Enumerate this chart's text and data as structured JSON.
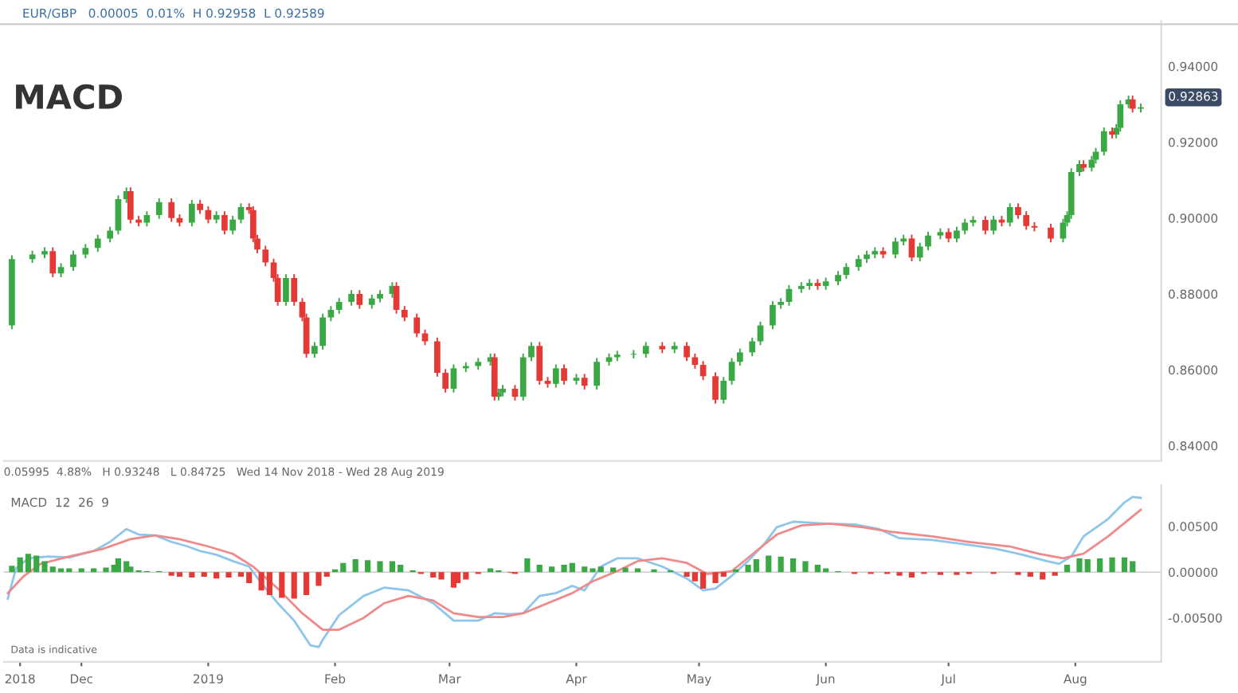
{
  "chart_data": [
    {
      "type": "candlestick",
      "title": "MACD",
      "subtitle": "EUR/GBP   0.00005  0.01%  H 0.92958  L 0.92589",
      "annotations": [
        "0.05995  4.88%   H 0.93248   L 0.84725   Wed 14 Nov 2018 - Wed 28 Aug 2019",
        "0.92863"
      ],
      "xlim": [
        "2018-11-12",
        "2019-08-22"
      ],
      "ylim": [
        0.836,
        0.952
      ],
      "tick_labels": "y",
      "yticks": [
        {
          "value": 0.84,
          "label": "0.84000"
        },
        {
          "value": 0.86,
          "label": "0.86000"
        },
        {
          "value": 0.88,
          "label": "0.88000"
        },
        {
          "value": 0.9,
          "label": "0.90000"
        },
        {
          "value": 0.92,
          "label": "0.92000"
        },
        {
          "value": 0.94,
          "label": "0.94000"
        }
      ],
      "series": [
        {
          "type": "candlestick",
          "color": "#3aa845",
          "x": [
            "2018-11-14",
            "2018-11-19",
            "2018-11-22",
            "2018-11-26",
            "2018-11-29",
            "2018-12-02",
            "2018-12-05",
            "2018-12-08",
            "2018-12-10",
            "2018-12-12",
            "2018-12-17",
            "2018-12-20",
            "2018-12-28",
            "2019-01-03",
            "2019-01-07",
            "2019-01-09",
            "2019-01-20",
            "2019-01-27",
            "2019-01-29",
            "2019-01-31",
            "2019-02-02",
            "2019-02-05",
            "2019-02-10",
            "2019-02-12",
            "2019-02-15",
            "2019-03-02",
            "2019-03-05",
            "2019-03-08",
            "2019-03-11",
            "2019-03-13",
            "2019-03-14",
            "2019-03-19",
            "2019-03-21",
            "2019-03-27",
            "2019-04-01",
            "2019-04-06",
            "2019-04-09",
            "2019-04-11",
            "2019-04-15",
            "2019-04-18",
            "2019-04-25",
            "2019-05-07",
            "2019-05-09",
            "2019-05-11",
            "2019-05-14",
            "2019-05-16",
            "2019-05-19",
            "2019-05-21",
            "2019-05-23",
            "2019-05-26",
            "2019-05-28",
            "2019-06-01",
            "2019-06-04",
            "2019-06-06",
            "2019-06-09",
            "2019-06-11",
            "2019-06-13",
            "2019-06-18",
            "2019-06-20",
            "2019-06-24",
            "2019-06-26",
            "2019-06-29",
            "2019-07-03",
            "2019-07-05",
            "2019-07-07",
            "2019-07-12",
            "2019-07-16",
            "2019-07-29",
            "2019-07-30",
            "2019-07-31",
            "2019-08-02",
            "2019-08-05",
            "2019-08-06",
            "2019-08-08",
            "2019-08-11",
            "2019-08-12",
            "2019-08-14",
            "2019-08-17"
          ],
          "ohlc": [
            [
              0.8717,
              0.8902,
              0.8707,
              0.8892
            ],
            [
              0.8892,
              0.8914,
              0.8882,
              0.8904
            ],
            [
              0.8904,
              0.8923,
              0.8894,
              0.8913
            ],
            [
              0.8854,
              0.8881,
              0.8844,
              0.8871
            ],
            [
              0.8871,
              0.8914,
              0.8861,
              0.8904
            ],
            [
              0.8904,
              0.8931,
              0.8894,
              0.8921
            ],
            [
              0.8921,
              0.8956,
              0.8911,
              0.8946
            ],
            [
              0.8946,
              0.8977,
              0.8936,
              0.8967
            ],
            [
              0.8967,
              0.906,
              0.8957,
              0.905
            ],
            [
              0.905,
              0.9081,
              0.904,
              0.9071
            ],
            [
              0.8988,
              0.9018,
              0.8978,
              0.9008
            ],
            [
              0.9008,
              0.9052,
              0.8998,
              0.9042
            ],
            [
              0.8988,
              0.9048,
              0.8978,
              0.9038
            ],
            [
              0.8996,
              0.9018,
              0.8986,
              0.9008
            ],
            [
              0.8967,
              0.9006,
              0.8957,
              0.8996
            ],
            [
              0.8996,
              0.9039,
              0.8986,
              0.9029
            ],
            [
              0.8779,
              0.8852,
              0.8769,
              0.8842
            ],
            [
              0.8642,
              0.8673,
              0.8632,
              0.8663
            ],
            [
              0.8663,
              0.8748,
              0.8653,
              0.8738
            ],
            [
              0.8738,
              0.8768,
              0.8728,
              0.8758
            ],
            [
              0.8758,
              0.8789,
              0.8748,
              0.8779
            ],
            [
              0.8779,
              0.881,
              0.8769,
              0.88
            ],
            [
              0.8771,
              0.8798,
              0.8761,
              0.8788
            ],
            [
              0.8788,
              0.881,
              0.8778,
              0.88
            ],
            [
              0.88,
              0.8831,
              0.879,
              0.8821
            ],
            [
              0.855,
              0.8614,
              0.854,
              0.8604
            ],
            [
              0.8604,
              0.862,
              0.8594,
              0.861
            ],
            [
              0.861,
              0.8631,
              0.86,
              0.8621
            ],
            [
              0.8621,
              0.8643,
              0.8611,
              0.8633
            ],
            [
              0.8529,
              0.855,
              0.8519,
              0.854
            ],
            [
              0.854,
              0.856,
              0.853,
              0.855
            ],
            [
              0.8529,
              0.8643,
              0.8519,
              0.8633
            ],
            [
              0.8633,
              0.8673,
              0.8623,
              0.8663
            ],
            [
              0.8563,
              0.8614,
              0.8553,
              0.8604
            ],
            [
              0.8571,
              0.8589,
              0.8561,
              0.8579
            ],
            [
              0.8558,
              0.8631,
              0.8548,
              0.8621
            ],
            [
              0.8621,
              0.8643,
              0.8611,
              0.8633
            ],
            [
              0.8633,
              0.865,
              0.8623,
              0.864
            ],
            [
              0.864,
              0.8652,
              0.863,
              0.8642
            ],
            [
              0.8642,
              0.8673,
              0.8632,
              0.8663
            ],
            [
              0.8654,
              0.8673,
              0.8644,
              0.8663
            ],
            [
              0.8521,
              0.8581,
              0.8511,
              0.8571
            ],
            [
              0.8571,
              0.8631,
              0.8561,
              0.8621
            ],
            [
              0.8621,
              0.8656,
              0.8611,
              0.8646
            ],
            [
              0.8646,
              0.8685,
              0.8636,
              0.8675
            ],
            [
              0.8675,
              0.8727,
              0.8665,
              0.8717
            ],
            [
              0.8717,
              0.8781,
              0.8707,
              0.8771
            ],
            [
              0.8771,
              0.8789,
              0.8761,
              0.8779
            ],
            [
              0.8779,
              0.8823,
              0.8769,
              0.8813
            ],
            [
              0.8813,
              0.8831,
              0.8803,
              0.8821
            ],
            [
              0.8821,
              0.8839,
              0.8811,
              0.8829
            ],
            [
              0.8821,
              0.8843,
              0.8811,
              0.8833
            ],
            [
              0.8833,
              0.886,
              0.8823,
              0.885
            ],
            [
              0.885,
              0.8881,
              0.884,
              0.8871
            ],
            [
              0.8871,
              0.8902,
              0.8861,
              0.8892
            ],
            [
              0.8892,
              0.8914,
              0.8882,
              0.8904
            ],
            [
              0.8904,
              0.8923,
              0.8894,
              0.8913
            ],
            [
              0.8904,
              0.8948,
              0.8894,
              0.8938
            ],
            [
              0.8938,
              0.8956,
              0.8928,
              0.8946
            ],
            [
              0.8896,
              0.8935,
              0.8886,
              0.8925
            ],
            [
              0.8925,
              0.8964,
              0.8915,
              0.8954
            ],
            [
              0.8954,
              0.8973,
              0.8944,
              0.8963
            ],
            [
              0.8946,
              0.8977,
              0.8936,
              0.8967
            ],
            [
              0.8967,
              0.8998,
              0.8957,
              0.8988
            ],
            [
              0.8988,
              0.9005,
              0.8978,
              0.8995
            ],
            [
              0.8967,
              0.9006,
              0.8957,
              0.8996
            ],
            [
              0.8988,
              0.9039,
              0.8978,
              0.9029
            ],
            [
              0.8946,
              0.8998,
              0.8936,
              0.8988
            ],
            [
              0.8988,
              0.9018,
              0.8978,
              0.9008
            ],
            [
              0.9008,
              0.9131,
              0.8998,
              0.9121
            ],
            [
              0.9121,
              0.9152,
              0.9111,
              0.9142
            ],
            [
              0.9133,
              0.9164,
              0.9123,
              0.9154
            ],
            [
              0.9154,
              0.9185,
              0.9144,
              0.9175
            ],
            [
              0.9175,
              0.9239,
              0.9165,
              0.9229
            ],
            [
              0.922,
              0.9248,
              0.921,
              0.9238
            ],
            [
              0.9238,
              0.931,
              0.9228,
              0.93
            ],
            [
              0.93,
              0.9323,
              0.929,
              0.9313
            ],
            [
              0.9288,
              0.9302,
              0.9278,
              0.9292
            ]
          ]
        },
        {
          "type": "candlestick",
          "color": "#e53935",
          "x": [
            "2018-11-24",
            "2018-12-13",
            "2018-12-15",
            "2018-12-23",
            "2018-12-25",
            "2018-12-30",
            "2019-01-01",
            "2019-01-05",
            "2019-01-11",
            "2019-01-12",
            "2019-01-13",
            "2019-01-15",
            "2019-01-17",
            "2019-01-18",
            "2019-01-22",
            "2019-01-24",
            "2019-01-25",
            "2019-02-07",
            "2019-02-16",
            "2019-02-18",
            "2019-02-21",
            "2019-02-23",
            "2019-02-26",
            "2019-02-28",
            "2019-03-12",
            "2019-03-17",
            "2019-03-23",
            "2019-03-25",
            "2019-03-29",
            "2019-04-03",
            "2019-04-22",
            "2019-04-28",
            "2019-04-30",
            "2019-05-02",
            "2019-05-05",
            "2019-05-30",
            "2019-06-15",
            "2019-06-22",
            "2019-07-01",
            "2019-07-10",
            "2019-07-14",
            "2019-07-18",
            "2019-07-20",
            "2019-07-22",
            "2019-07-26",
            "2019-08-03",
            "2019-08-10",
            "2019-08-15"
          ],
          "ohlc": [
            [
              0.8913,
              0.8923,
              0.8844,
              0.8854
            ],
            [
              0.9071,
              0.9081,
              0.8986,
              0.8996
            ],
            [
              0.8996,
              0.9006,
              0.8978,
              0.8988
            ],
            [
              0.9042,
              0.9052,
              0.899,
              0.9
            ],
            [
              0.9,
              0.901,
              0.8978,
              0.8988
            ],
            [
              0.9038,
              0.9048,
              0.9011,
              0.9021
            ],
            [
              0.9021,
              0.9031,
              0.8986,
              0.8996
            ],
            [
              0.9008,
              0.9018,
              0.8957,
              0.8967
            ],
            [
              0.9029,
              0.9039,
              0.9011,
              0.9021
            ],
            [
              0.9021,
              0.9031,
              0.8936,
              0.8946
            ],
            [
              0.8946,
              0.8956,
              0.8907,
              0.8917
            ],
            [
              0.8917,
              0.8927,
              0.8873,
              0.8883
            ],
            [
              0.8883,
              0.8893,
              0.8832,
              0.8842
            ],
            [
              0.8842,
              0.8852,
              0.8769,
              0.8779
            ],
            [
              0.8842,
              0.8852,
              0.8769,
              0.8779
            ],
            [
              0.8779,
              0.8789,
              0.8728,
              0.8738
            ],
            [
              0.8738,
              0.8748,
              0.8632,
              0.8642
            ],
            [
              0.88,
              0.881,
              0.8761,
              0.8771
            ],
            [
              0.8821,
              0.8831,
              0.8748,
              0.8758
            ],
            [
              0.8758,
              0.8768,
              0.8728,
              0.8738
            ],
            [
              0.8738,
              0.8748,
              0.8686,
              0.8696
            ],
            [
              0.8696,
              0.8706,
              0.8665,
              0.8675
            ],
            [
              0.8675,
              0.8685,
              0.8582,
              0.8592
            ],
            [
              0.8592,
              0.8602,
              0.854,
              0.855
            ],
            [
              0.8633,
              0.8643,
              0.8519,
              0.8529
            ],
            [
              0.855,
              0.856,
              0.8519,
              0.8529
            ],
            [
              0.8663,
              0.8673,
              0.8561,
              0.8571
            ],
            [
              0.8571,
              0.8581,
              0.8553,
              0.8563
            ],
            [
              0.8604,
              0.8614,
              0.8561,
              0.8571
            ],
            [
              0.8579,
              0.8589,
              0.8548,
              0.8558
            ],
            [
              0.8663,
              0.8673,
              0.8644,
              0.8654
            ],
            [
              0.8663,
              0.8673,
              0.8623,
              0.8633
            ],
            [
              0.8633,
              0.8643,
              0.8603,
              0.8613
            ],
            [
              0.8613,
              0.8623,
              0.8573,
              0.8583
            ],
            [
              0.8583,
              0.8593,
              0.8511,
              0.8521
            ],
            [
              0.8829,
              0.8839,
              0.8811,
              0.8821
            ],
            [
              0.8913,
              0.8923,
              0.8894,
              0.8904
            ],
            [
              0.8946,
              0.8956,
              0.8886,
              0.8896
            ],
            [
              0.8963,
              0.8973,
              0.8936,
              0.8946
            ],
            [
              0.8995,
              0.9005,
              0.8957,
              0.8967
            ],
            [
              0.8996,
              0.9006,
              0.8978,
              0.8988
            ],
            [
              0.9029,
              0.9039,
              0.8998,
              0.9008
            ],
            [
              0.9008,
              0.9018,
              0.8969,
              0.8979
            ],
            [
              0.8979,
              0.8989,
              0.8965,
              0.8975
            ],
            [
              0.8975,
              0.8985,
              0.8936,
              0.8946
            ],
            [
              0.9142,
              0.9152,
              0.9123,
              0.9133
            ],
            [
              0.9229,
              0.9239,
              0.921,
              0.922
            ],
            [
              0.9313,
              0.9323,
              0.9278,
              0.9288
            ]
          ]
        }
      ]
    },
    {
      "type": "bar",
      "title": "MACD  12  26  9",
      "annotations": [
        "Data is indicative"
      ],
      "xlim": [
        "2018-11-12",
        "2019-08-22"
      ],
      "ylim": [
        -0.0098,
        0.0095
      ],
      "xticks": [
        {
          "value": "2018-11-16",
          "label": "2018"
        },
        {
          "value": "2018-12-01",
          "label": "Dec"
        },
        {
          "value": "2019-01-01",
          "label": "2019"
        },
        {
          "value": "2019-02-01",
          "label": "Feb"
        },
        {
          "value": "2019-03-01",
          "label": "Mar"
        },
        {
          "value": "2019-04-01",
          "label": "Apr"
        },
        {
          "value": "2019-05-01",
          "label": "May"
        },
        {
          "value": "2019-06-01",
          "label": "Jun"
        },
        {
          "value": "2019-07-01",
          "label": "Jul"
        },
        {
          "value": "2019-08-01",
          "label": "Aug"
        }
      ],
      "yticks": [
        {
          "value": -0.005,
          "label": "-0.00500"
        },
        {
          "value": 0,
          "label": "0.00000"
        },
        {
          "value": 0.005,
          "label": "0.00500"
        }
      ],
      "series": [
        {
          "type": "bar",
          "color": "#3aa845",
          "x": [
            "2018-11-14",
            "2018-11-16",
            "2018-11-18",
            "2018-11-20",
            "2018-11-22",
            "2018-11-24",
            "2018-11-26",
            "2018-11-28",
            "2018-12-01",
            "2018-12-04",
            "2018-12-07",
            "2018-12-09",
            "2018-12-10",
            "2018-12-12",
            "2018-12-13",
            "2018-12-15",
            "2018-12-17",
            "2018-12-20",
            "2019-02-01",
            "2019-02-03",
            "2019-02-06",
            "2019-02-09",
            "2019-02-12",
            "2019-02-15",
            "2019-02-17",
            "2019-02-20",
            "2019-03-11",
            "2019-03-13",
            "2019-03-20",
            "2019-03-23",
            "2019-03-26",
            "2019-03-29",
            "2019-03-31",
            "2019-04-03",
            "2019-04-05",
            "2019-04-07",
            "2019-04-10",
            "2019-04-13",
            "2019-04-16",
            "2019-04-20",
            "2019-04-24",
            "2019-05-10",
            "2019-05-13",
            "2019-05-15",
            "2019-05-18",
            "2019-05-21",
            "2019-05-24",
            "2019-05-27",
            "2019-05-30",
            "2019-06-01",
            "2019-06-04",
            "2019-07-30",
            "2019-08-02",
            "2019-08-04",
            "2019-08-07",
            "2019-08-10",
            "2019-08-13",
            "2019-08-15"
          ],
          "values": [
            0.0007,
            0.0016,
            0.002,
            0.0018,
            0.0012,
            0.0006,
            0.0004,
            0.0004,
            0.0004,
            0.0004,
            0.0005,
            0.0008,
            0.0015,
            0.0012,
            0.0006,
            0.0002,
            0.0001,
            0.0001,
            0.0003,
            0.001,
            0.0014,
            0.0013,
            0.0012,
            0.0012,
            0.0008,
            0.0002,
            0.0004,
            0.0002,
            0.0015,
            0.0008,
            0.0006,
            0.0008,
            0.001,
            0.0006,
            0.0004,
            0.0006,
            0.0005,
            0.0005,
            0.0004,
            0.0003,
            0.0002,
            0.0003,
            0.0008,
            0.0014,
            0.0018,
            0.0017,
            0.0015,
            0.0012,
            0.0008,
            0.0004,
            0.0001,
            0.0008,
            0.0015,
            0.0014,
            0.0015,
            0.0016,
            0.0016,
            0.0012
          ]
        },
        {
          "type": "bar",
          "color": "#e53935",
          "x": [
            "2018-12-23",
            "2018-12-25",
            "2018-12-28",
            "2018-12-31",
            "2019-01-03",
            "2019-01-06",
            "2019-01-09",
            "2019-01-11",
            "2019-01-14",
            "2019-01-16",
            "2019-01-19",
            "2019-01-22",
            "2019-01-25",
            "2019-01-28",
            "2019-01-30",
            "2019-02-22",
            "2019-02-25",
            "2019-02-27",
            "2019-03-02",
            "2019-03-03",
            "2019-03-05",
            "2019-03-08",
            "2019-03-16",
            "2019-03-17",
            "2019-04-28",
            "2019-04-30",
            "2019-05-02",
            "2019-05-05",
            "2019-05-07",
            "2019-06-08",
            "2019-06-12",
            "2019-06-16",
            "2019-06-19",
            "2019-06-22",
            "2019-06-25",
            "2019-06-29",
            "2019-07-03",
            "2019-07-06",
            "2019-07-12",
            "2019-07-18",
            "2019-07-21",
            "2019-07-24",
            "2019-07-27"
          ],
          "values": [
            -0.0004,
            -0.0005,
            -0.0006,
            -0.0005,
            -0.0007,
            -0.0006,
            -0.0005,
            -0.0012,
            -0.002,
            -0.0025,
            -0.0028,
            -0.0029,
            -0.0025,
            -0.0015,
            -0.0005,
            -0.0002,
            -0.0006,
            -0.0008,
            -0.0017,
            -0.0012,
            -0.0008,
            -0.0002,
            -0.0001,
            -0.0002,
            -0.0005,
            -0.001,
            -0.0018,
            -0.0012,
            -0.0005,
            -0.0002,
            -0.0002,
            -0.0002,
            -0.0004,
            -0.0006,
            -0.0002,
            -0.0003,
            -0.0003,
            -0.0002,
            -0.0002,
            -0.0003,
            -0.0005,
            -0.0008,
            -0.0004
          ]
        },
        {
          "type": "line",
          "color": "#8ec5ea",
          "x": [
            "2018-11-13",
            "2018-11-15",
            "2018-11-18",
            "2018-11-23",
            "2018-11-28",
            "2018-12-04",
            "2018-12-08",
            "2018-12-12",
            "2018-12-15",
            "2018-12-19",
            "2018-12-23",
            "2018-12-27",
            "2018-12-30",
            "2019-01-03",
            "2019-01-07",
            "2019-01-11",
            "2019-01-14",
            "2019-01-18",
            "2019-01-22",
            "2019-01-26",
            "2019-01-28",
            "2019-01-29",
            "2019-02-02",
            "2019-02-08",
            "2019-02-13",
            "2019-02-19",
            "2019-02-25",
            "2019-03-02",
            "2019-03-08",
            "2019-03-12",
            "2019-03-16",
            "2019-03-19",
            "2019-03-23",
            "2019-03-27",
            "2019-03-31",
            "2019-04-03",
            "2019-04-07",
            "2019-04-11",
            "2019-04-16",
            "2019-04-22",
            "2019-04-28",
            "2019-05-02",
            "2019-05-05",
            "2019-05-09",
            "2019-05-13",
            "2019-05-17",
            "2019-05-20",
            "2019-05-24",
            "2019-06-01",
            "2019-06-08",
            "2019-06-14",
            "2019-06-19",
            "2019-06-27",
            "2019-07-04",
            "2019-07-12",
            "2019-07-19",
            "2019-07-25",
            "2019-07-28",
            "2019-07-31",
            "2019-08-03",
            "2019-08-09",
            "2019-08-13",
            "2019-08-15",
            "2019-08-17"
          ],
          "values": [
            -0.0029,
            0.0004,
            0.0015,
            0.0017,
            0.0016,
            0.0023,
            0.0033,
            0.0047,
            0.0041,
            0.004,
            0.0033,
            0.0028,
            0.0023,
            0.0019,
            0.0012,
            0.0006,
            -0.0012,
            -0.0034,
            -0.0053,
            -0.008,
            -0.0082,
            -0.0074,
            -0.0047,
            -0.0026,
            -0.0017,
            -0.002,
            -0.0034,
            -0.0053,
            -0.0053,
            -0.0045,
            -0.0046,
            -0.0045,
            -0.0026,
            -0.0023,
            -0.0015,
            -0.002,
            0.0006,
            0.0015,
            0.0015,
            0.0006,
            -0.0007,
            -0.002,
            -0.0018,
            -0.0004,
            0.0012,
            0.0031,
            0.0049,
            0.0055,
            0.0053,
            0.0052,
            0.0047,
            0.0037,
            0.0035,
            0.0031,
            0.0026,
            0.0019,
            0.0012,
            0.0009,
            0.0017,
            0.0039,
            0.0058,
            0.0076,
            0.0082,
            0.0081
          ]
        },
        {
          "type": "line",
          "color": "#f08a8a",
          "x": [
            "2018-11-13",
            "2018-11-17",
            "2018-11-21",
            "2018-11-28",
            "2018-12-06",
            "2018-12-13",
            "2018-12-19",
            "2018-12-25",
            "2019-01-01",
            "2019-01-07",
            "2019-01-12",
            "2019-01-18",
            "2019-01-24",
            "2019-01-29",
            "2019-02-02",
            "2019-02-08",
            "2019-02-13",
            "2019-02-19",
            "2019-02-25",
            "2019-03-02",
            "2019-03-08",
            "2019-03-14",
            "2019-03-19",
            "2019-03-25",
            "2019-03-31",
            "2019-04-05",
            "2019-04-11",
            "2019-04-16",
            "2019-04-22",
            "2019-04-28",
            "2019-05-03",
            "2019-05-09",
            "2019-05-15",
            "2019-05-20",
            "2019-05-26",
            "2019-06-02",
            "2019-06-10",
            "2019-06-17",
            "2019-06-27",
            "2019-07-06",
            "2019-07-16",
            "2019-07-23",
            "2019-07-29",
            "2019-08-03",
            "2019-08-09",
            "2019-08-17"
          ],
          "values": [
            -0.0023,
            -0.0004,
            0.0009,
            0.0017,
            0.0025,
            0.0036,
            0.004,
            0.0036,
            0.0028,
            0.002,
            0.0006,
            -0.0018,
            -0.0045,
            -0.0063,
            -0.0063,
            -0.005,
            -0.0034,
            -0.0026,
            -0.0031,
            -0.0045,
            -0.0049,
            -0.0049,
            -0.0045,
            -0.0034,
            -0.0023,
            -0.001,
            0.0001,
            0.0012,
            0.0015,
            0.001,
            -0.0002,
            0.0001,
            0.0023,
            0.0041,
            0.0051,
            0.0053,
            0.0049,
            0.0044,
            0.0039,
            0.0033,
            0.0028,
            0.002,
            0.0015,
            0.002,
            0.0039,
            0.0068
          ]
        }
      ]
    }
  ]
}
